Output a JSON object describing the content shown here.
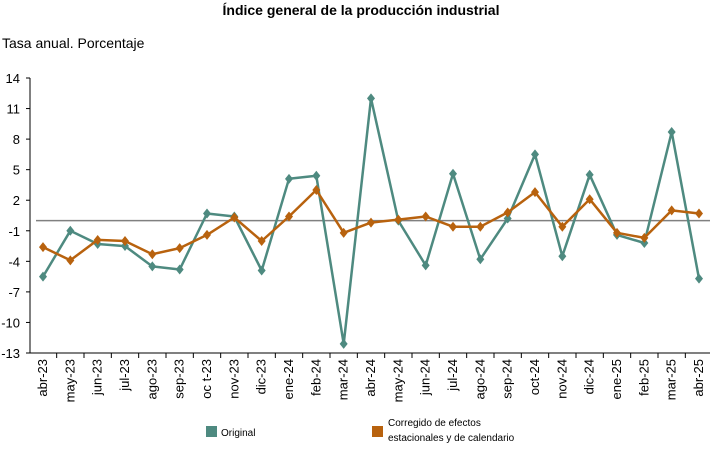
{
  "chart_data": {
    "type": "line",
    "title": "Índice general de la producción industrial",
    "subtitle": "Tasa anual. Porcentaje",
    "xlabel": "",
    "ylabel": "",
    "ylim": [
      -13,
      14
    ],
    "yticks": [
      14,
      11,
      8,
      5,
      2,
      -1,
      -4,
      -7,
      -10,
      -13
    ],
    "yticks_text": [
      "14",
      "11",
      "8",
      "5",
      "2",
      "-1",
      "-4",
      "-7",
      "-10",
      "-13"
    ],
    "reference_line": 0,
    "grid": false,
    "legend_position": "bottom",
    "categories": [
      "abr-23",
      "may-23",
      "jun-23",
      "jul-23",
      "ago-23",
      "sep-23",
      "oct-23",
      "nov-23",
      "dic-23",
      "ene-24",
      "feb-24",
      "mar-24",
      "abr-24",
      "may-24",
      "jun-24",
      "jul-24",
      "ago-24",
      "sep-24",
      "oct-24",
      "nov-24",
      "dic-24",
      "ene-25",
      "feb-25",
      "mar-25",
      "abr-25"
    ],
    "x_tick_labels": [
      "abr-23",
      "may-23",
      "jun-23",
      "jul-23",
      "ago-23",
      "sep-23",
      "oc t-23",
      "nov-23",
      "dic-23",
      "ene-24",
      "feb-24",
      "mar-24",
      "abr-24",
      "may-24",
      "jun-24",
      "jul-24",
      "ago-24",
      "sep-24",
      "oct-24",
      "nov-24",
      "dic-24",
      "ene-25",
      "feb-25",
      "mar-25",
      "abr-25"
    ],
    "series": [
      {
        "name": "Original",
        "color": "#4E8A80",
        "values": [
          -5.5,
          -1.0,
          -2.3,
          -2.5,
          -4.5,
          -4.8,
          0.7,
          0.4,
          -4.9,
          4.1,
          4.4,
          -12.1,
          12.0,
          0.0,
          -4.4,
          4.6,
          -3.8,
          0.2,
          6.5,
          -3.5,
          4.5,
          -1.4,
          -2.2,
          8.7,
          -5.7
        ]
      },
      {
        "name": "Corregido de efectos estacionales y de calendario",
        "legend_lines": [
          "Corregido de efectos",
          "estacionales y de calendario"
        ],
        "color": "#B8620E",
        "values": [
          -2.6,
          -3.9,
          -1.9,
          -2.0,
          -3.3,
          -2.7,
          -1.4,
          0.3,
          -2.0,
          0.4,
          3.0,
          -1.2,
          -0.2,
          0.1,
          0.4,
          -0.6,
          -0.6,
          0.8,
          2.8,
          -0.6,
          2.1,
          -1.2,
          -1.7,
          1.0,
          0.7
        ]
      }
    ]
  }
}
